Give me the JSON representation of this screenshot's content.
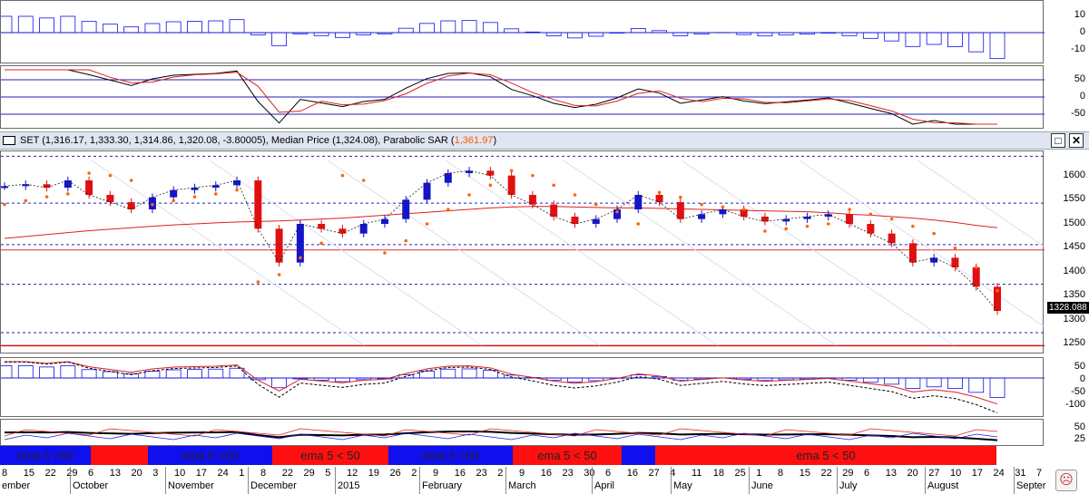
{
  "colors": {
    "up": "#1515c8",
    "down": "#e01010",
    "neutral": "#000000",
    "sar": "#ff6600",
    "band_blue": "#1010ee",
    "band_red": "#ff1010",
    "grid": "#2020c0"
  },
  "title_bar": {
    "text_main": "SET (1,316.17, 1,333.30, 1,314.86, 1,320.08, -3.80005), Median Price (1,324.08), Parabolic SAR (",
    "text_sar": "1,361.97",
    "text_end": ")",
    "maximize_icon": "maximize-icon",
    "close_icon": "close-icon"
  },
  "last_price_label": "1328.088",
  "panes": {
    "histogram_top": {
      "ticks": [
        "10",
        "0",
        "-10"
      ]
    },
    "oscillator": {
      "ticks": [
        "50",
        "0",
        "-50"
      ]
    },
    "price": {
      "ticks": [
        "1600",
        "1550",
        "1500",
        "1450",
        "1400",
        "1350",
        "1300",
        "1250"
      ]
    },
    "macd": {
      "ticks": [
        "50",
        "0",
        "-50",
        "-100"
      ]
    },
    "dmi": {
      "ticks": [
        "50",
        "25"
      ]
    }
  },
  "ema_bands": [
    {
      "label": "ema 5 >50",
      "color": "blue"
    },
    {
      "label": "",
      "color": "red"
    },
    {
      "label": "ema 5 >50",
      "color": "blue"
    },
    {
      "label": "ema 5 < 50",
      "color": "red"
    },
    {
      "label": "ema 5 >50",
      "color": "blue"
    },
    {
      "label": "ema 5 < 50",
      "color": "red"
    },
    {
      "label": "",
      "color": "blue"
    },
    {
      "label": "ema 5 < 50",
      "color": "red"
    }
  ],
  "date_labels": [
    "8",
    "15",
    "22",
    "29",
    "6",
    "13",
    "20",
    "3",
    "10",
    "17",
    "24",
    "1",
    "8",
    "22",
    "29",
    "5",
    "12",
    "19",
    "26",
    "2",
    "9",
    "16",
    "23",
    "2",
    "9",
    "16",
    "23",
    "30",
    "6",
    "16",
    "27",
    "4",
    "11",
    "18",
    "25",
    "1",
    "8",
    "15",
    "22",
    "29",
    "6",
    "13",
    "20",
    "27",
    "10",
    "17",
    "24",
    "31",
    "7"
  ],
  "month_labels": [
    "ember",
    "October",
    "November",
    "December",
    "2015",
    "February",
    "March",
    "April",
    "May",
    "June",
    "July",
    "August",
    "Septer"
  ],
  "status_icon": "sad-face-icon",
  "chart_data": {
    "type": "line",
    "title": "SET",
    "ohlc_last": {
      "open": 1316.17,
      "high": 1333.3,
      "low": 1314.86,
      "close": 1320.08,
      "change": -3.80005
    },
    "median_price": 1324.08,
    "parabolic_sar": 1361.97,
    "ylim": [
      1230,
      1650
    ],
    "x": [
      "Sep-08",
      "Sep-15",
      "Sep-22",
      "Sep-29",
      "Oct-06",
      "Oct-13",
      "Oct-20",
      "Nov-03",
      "Nov-10",
      "Nov-17",
      "Nov-24",
      "Dec-01",
      "Dec-08",
      "Dec-15",
      "Dec-22",
      "Dec-29",
      "Jan-05",
      "Jan-12",
      "Jan-19",
      "Jan-26",
      "Feb-02",
      "Feb-09",
      "Feb-16",
      "Feb-23",
      "Mar-02",
      "Mar-09",
      "Mar-16",
      "Mar-23",
      "Mar-30",
      "Apr-06",
      "Apr-16",
      "Apr-27",
      "May-04",
      "May-11",
      "May-18",
      "May-25",
      "Jun-01",
      "Jun-08",
      "Jun-15",
      "Jun-22",
      "Jun-29",
      "Jul-06",
      "Jul-13",
      "Jul-20",
      "Jul-27",
      "Aug-10",
      "Aug-17",
      "Aug-24"
    ],
    "series": [
      {
        "name": "SET",
        "values": [
          1578,
          1582,
          1575,
          1590,
          1560,
          1545,
          1530,
          1555,
          1570,
          1575,
          1580,
          1590,
          1490,
          1420,
          1500,
          1490,
          1480,
          1500,
          1510,
          1550,
          1585,
          1605,
          1610,
          1600,
          1560,
          1540,
          1515,
          1500,
          1510,
          1530,
          1560,
          1545,
          1510,
          1520,
          1530,
          1515,
          1505,
          1510,
          1515,
          1520,
          1500,
          1480,
          1460,
          1420,
          1430,
          1410,
          1370,
          1320
        ]
      },
      {
        "name": "Parabolic SAR",
        "values": [
          1540,
          1548,
          1556,
          1562,
          1605,
          1600,
          1590,
          1540,
          1548,
          1556,
          1562,
          1570,
          1380,
          1395,
          1430,
          1460,
          1600,
          1590,
          1440,
          1465,
          1500,
          1530,
          1560,
          1580,
          1610,
          1600,
          1580,
          1560,
          1540,
          1525,
          1500,
          1565,
          1555,
          1540,
          1535,
          1530,
          1485,
          1490,
          1495,
          1500,
          1530,
          1520,
          1510,
          1495,
          1480,
          1450,
          1410,
          1362
        ]
      },
      {
        "name": "Long MA",
        "values": [
          1470,
          1474,
          1478,
          1482,
          1486,
          1489,
          1492,
          1495,
          1498,
          1500,
          1502,
          1504,
          1505,
          1506,
          1508,
          1510,
          1512,
          1515,
          1518,
          1521,
          1524,
          1527,
          1530,
          1533,
          1535,
          1536,
          1536,
          1535,
          1534,
          1533,
          1533,
          1532,
          1531,
          1530,
          1529,
          1528,
          1527,
          1526,
          1525,
          1523,
          1520,
          1518,
          1515,
          1512,
          1508,
          1503,
          1497,
          1492
        ]
      }
    ]
  }
}
